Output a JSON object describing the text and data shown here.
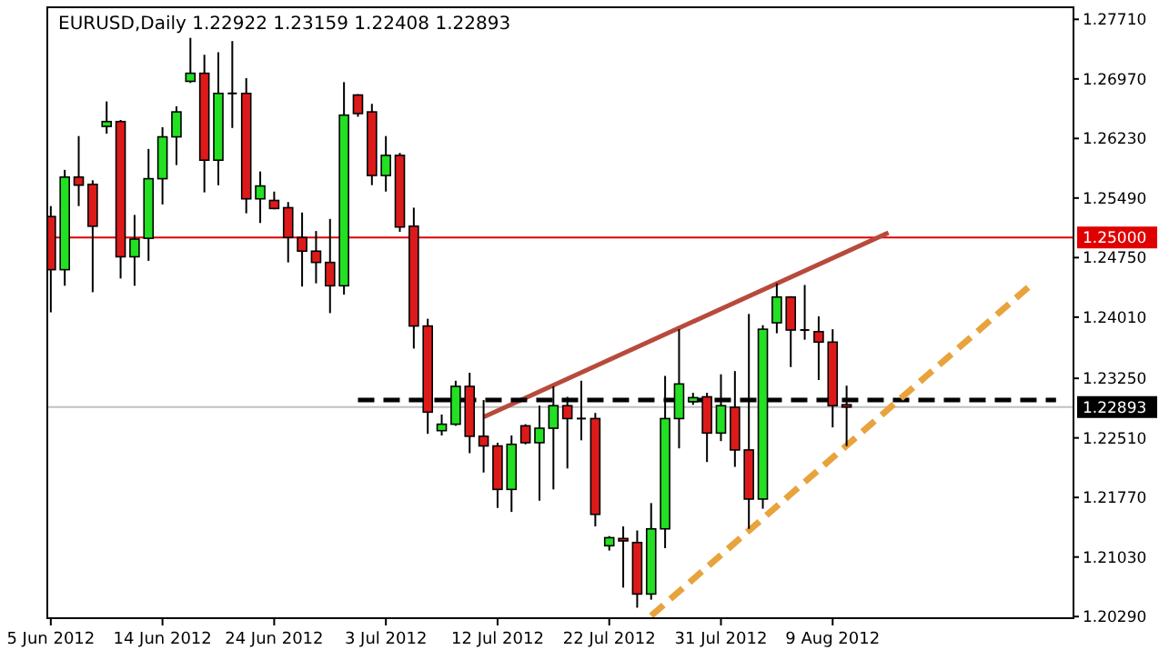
{
  "chart_data": {
    "type": "candlestick",
    "title": "EURUSD,Daily  1.22922 1.23159 1.22408 1.22893",
    "categories": [
      "5 Jun 2012",
      null,
      null,
      null,
      null,
      null,
      null,
      null,
      "14 Jun 2012",
      null,
      null,
      null,
      null,
      null,
      null,
      null,
      "24 Jun 2012",
      null,
      null,
      null,
      null,
      null,
      null,
      null,
      "3 Jul 2012",
      null,
      null,
      null,
      null,
      null,
      null,
      null,
      "12 Jul 2012",
      null,
      null,
      null,
      null,
      null,
      null,
      null,
      "22 Jul 2012",
      null,
      null,
      null,
      null,
      null,
      null,
      null,
      "31 Jul 2012",
      null,
      null,
      null,
      null,
      null,
      null,
      null,
      "9 Aug 2012",
      null,
      null,
      null,
      null,
      null,
      null,
      null,
      null,
      null,
      null,
      null,
      null,
      null,
      null,
      null,
      null,
      null
    ],
    "ohlc": [
      [
        1.2526,
        1.2539,
        1.2407,
        1.246
      ],
      [
        1.246,
        1.2584,
        1.244,
        1.2575
      ],
      [
        1.2575,
        1.2626,
        1.2539,
        1.2565
      ],
      [
        1.2566,
        1.2571,
        1.2432,
        1.2514
      ],
      [
        1.2638,
        1.2669,
        1.2629,
        1.2644
      ],
      [
        1.2644,
        1.2646,
        1.2449,
        1.2476
      ],
      [
        1.2476,
        1.2528,
        1.244,
        1.2498
      ],
      [
        1.2499,
        1.261,
        1.2471,
        1.2573
      ],
      [
        1.2573,
        1.2637,
        1.2541,
        1.2625
      ],
      [
        1.2625,
        1.2663,
        1.259,
        1.2656
      ],
      [
        1.2694,
        1.2748,
        1.2692,
        1.2704
      ],
      [
        1.2704,
        1.2727,
        1.2556,
        1.2596
      ],
      [
        1.2596,
        1.273,
        1.2565,
        1.2679
      ],
      [
        1.2679,
        1.2744,
        1.2636,
        1.2679
      ],
      [
        1.2679,
        1.2698,
        1.253,
        1.2548
      ],
      [
        1.2548,
        1.2582,
        1.2518,
        1.2564
      ],
      [
        1.2546,
        1.2557,
        1.2535,
        1.2536
      ],
      [
        1.2537,
        1.2544,
        1.2469,
        1.25
      ],
      [
        1.25,
        1.2531,
        1.2439,
        1.2483
      ],
      [
        1.2483,
        1.2508,
        1.2443,
        1.2469
      ],
      [
        1.2469,
        1.2523,
        1.2406,
        1.244
      ],
      [
        1.244,
        1.2693,
        1.2429,
        1.2652
      ],
      [
        1.2677,
        1.2678,
        1.265,
        1.2654
      ],
      [
        1.2656,
        1.2666,
        1.2565,
        1.2577
      ],
      [
        1.2577,
        1.2626,
        1.2557,
        1.2602
      ],
      [
        1.2602,
        1.2605,
        1.2507,
        1.2513
      ],
      [
        1.2514,
        1.2537,
        1.2362,
        1.239
      ],
      [
        1.239,
        1.2399,
        1.2256,
        1.2283
      ],
      [
        1.226,
        1.228,
        1.2254,
        1.2268
      ],
      [
        1.2268,
        1.2322,
        1.2266,
        1.2315
      ],
      [
        1.2315,
        1.2332,
        1.2232,
        1.2253
      ],
      [
        1.2253,
        1.2298,
        1.2208,
        1.2241
      ],
      [
        1.2241,
        1.2245,
        1.2164,
        1.2187
      ],
      [
        1.2187,
        1.2254,
        1.2159,
        1.2243
      ],
      [
        1.2266,
        1.2268,
        1.2243,
        1.2245
      ],
      [
        1.2245,
        1.2291,
        1.2173,
        1.2263
      ],
      [
        1.2263,
        1.2315,
        1.2187,
        1.2291
      ],
      [
        1.2291,
        1.2302,
        1.2213,
        1.2275
      ],
      [
        1.2275,
        1.2322,
        1.2248,
        1.2275
      ],
      [
        1.2275,
        1.2282,
        1.2141,
        1.2156
      ],
      [
        1.2117,
        1.2129,
        1.2111,
        1.2127
      ],
      [
        1.2126,
        1.2141,
        1.2065,
        1.2123
      ],
      [
        1.2121,
        1.2136,
        1.204,
        1.2057
      ],
      [
        1.2057,
        1.217,
        1.205,
        1.2138
      ],
      [
        1.2138,
        1.2328,
        1.2114,
        1.2275
      ],
      [
        1.2275,
        1.2386,
        1.2238,
        1.2318
      ],
      [
        1.2296,
        1.2307,
        1.2292,
        1.2301
      ],
      [
        1.2302,
        1.2307,
        1.2221,
        1.2257
      ],
      [
        1.2257,
        1.233,
        1.2247,
        1.2291
      ],
      [
        1.2289,
        1.2334,
        1.2215,
        1.2236
      ],
      [
        1.2236,
        1.2405,
        1.2138,
        1.2175
      ],
      [
        1.2175,
        1.2391,
        1.2163,
        1.2386
      ],
      [
        1.2394,
        1.2443,
        1.2381,
        1.2426
      ],
      [
        1.2426,
        1.2427,
        1.2339,
        1.2385
      ],
      [
        1.2385,
        1.2441,
        1.2373,
        1.2385
      ],
      [
        1.2383,
        1.2402,
        1.2323,
        1.237
      ],
      [
        1.237,
        1.2386,
        1.2264,
        1.2291
      ],
      [
        1.22922,
        1.23159,
        1.22408,
        1.22893
      ],
      null,
      null,
      null,
      null,
      null,
      null,
      null,
      null,
      null,
      null,
      null,
      null,
      null,
      null,
      null,
      null
    ],
    "series": [
      {
        "type": "line",
        "color": "#b84a3c",
        "values": [
          null,
          null,
          null,
          null,
          null,
          null,
          null,
          null,
          null,
          null,
          null,
          null,
          null,
          null,
          null,
          null,
          null,
          null,
          null,
          null,
          null,
          null,
          null,
          null,
          null,
          null,
          null,
          null,
          null,
          null,
          null,
          1.2277,
          null,
          null,
          null,
          null,
          null,
          null,
          null,
          null,
          null,
          null,
          null,
          null,
          null,
          null,
          null,
          null,
          null,
          null,
          null,
          null,
          null,
          null,
          null,
          null,
          null,
          null,
          null,
          null,
          1.2506,
          null,
          null,
          null,
          null,
          null,
          null,
          null,
          null,
          null,
          null,
          null,
          null,
          null
        ]
      },
      {
        "type": "line",
        "color": "#000000",
        "line_style": "dashed",
        "values": [
          null,
          null,
          null,
          null,
          null,
          null,
          null,
          null,
          null,
          null,
          null,
          null,
          null,
          null,
          null,
          null,
          null,
          null,
          null,
          null,
          null,
          null,
          1.2298,
          null,
          null,
          null,
          null,
          null,
          null,
          null,
          null,
          null,
          null,
          null,
          null,
          null,
          null,
          null,
          null,
          null,
          null,
          null,
          null,
          null,
          null,
          null,
          null,
          null,
          null,
          null,
          null,
          null,
          null,
          null,
          null,
          null,
          null,
          null,
          null,
          null,
          null,
          null,
          null,
          null,
          null,
          null,
          null,
          null,
          null,
          null,
          null,
          null,
          1.2298,
          null
        ]
      },
      {
        "type": "line",
        "color": "#e8a33d",
        "line_style": "dashed",
        "values": [
          null,
          null,
          null,
          null,
          null,
          null,
          null,
          null,
          null,
          null,
          null,
          null,
          null,
          null,
          null,
          null,
          null,
          null,
          null,
          null,
          null,
          null,
          null,
          null,
          null,
          null,
          null,
          null,
          null,
          null,
          null,
          null,
          null,
          null,
          null,
          null,
          null,
          null,
          null,
          null,
          null,
          null,
          null,
          1.203,
          null,
          null,
          null,
          null,
          null,
          null,
          null,
          null,
          null,
          null,
          null,
          null,
          null,
          null,
          null,
          null,
          null,
          null,
          null,
          null,
          null,
          null,
          null,
          null,
          null,
          null,
          1.2438,
          null,
          null,
          null
        ]
      }
    ],
    "ylim": [
      1.2027,
      1.2786
    ],
    "yticks": [
      {
        "value": 1.2771,
        "label": "1.27710"
      },
      {
        "value": 1.2697,
        "label": "1.26970"
      },
      {
        "value": 1.2623,
        "label": "1.26230"
      },
      {
        "value": 1.2549,
        "label": "1.25490"
      },
      {
        "value": 1.2475,
        "label": "1.24750"
      },
      {
        "value": 1.2401,
        "label": "1.24010"
      },
      {
        "value": 1.2325,
        "label": "1.23250"
      },
      {
        "value": 1.2251,
        "label": "1.22510"
      },
      {
        "value": 1.2177,
        "label": "1.21770"
      },
      {
        "value": 1.2103,
        "label": "1.21030"
      },
      {
        "value": 1.2029,
        "label": "1.20290"
      }
    ],
    "ref_lines": [
      {
        "axis": "y",
        "value": 1.25,
        "label": "1.25000",
        "color": "#e00000"
      },
      {
        "axis": "y",
        "value": 1.22893,
        "label": "1.22893",
        "color": "#c0c0c0"
      }
    ],
    "grid": false
  }
}
